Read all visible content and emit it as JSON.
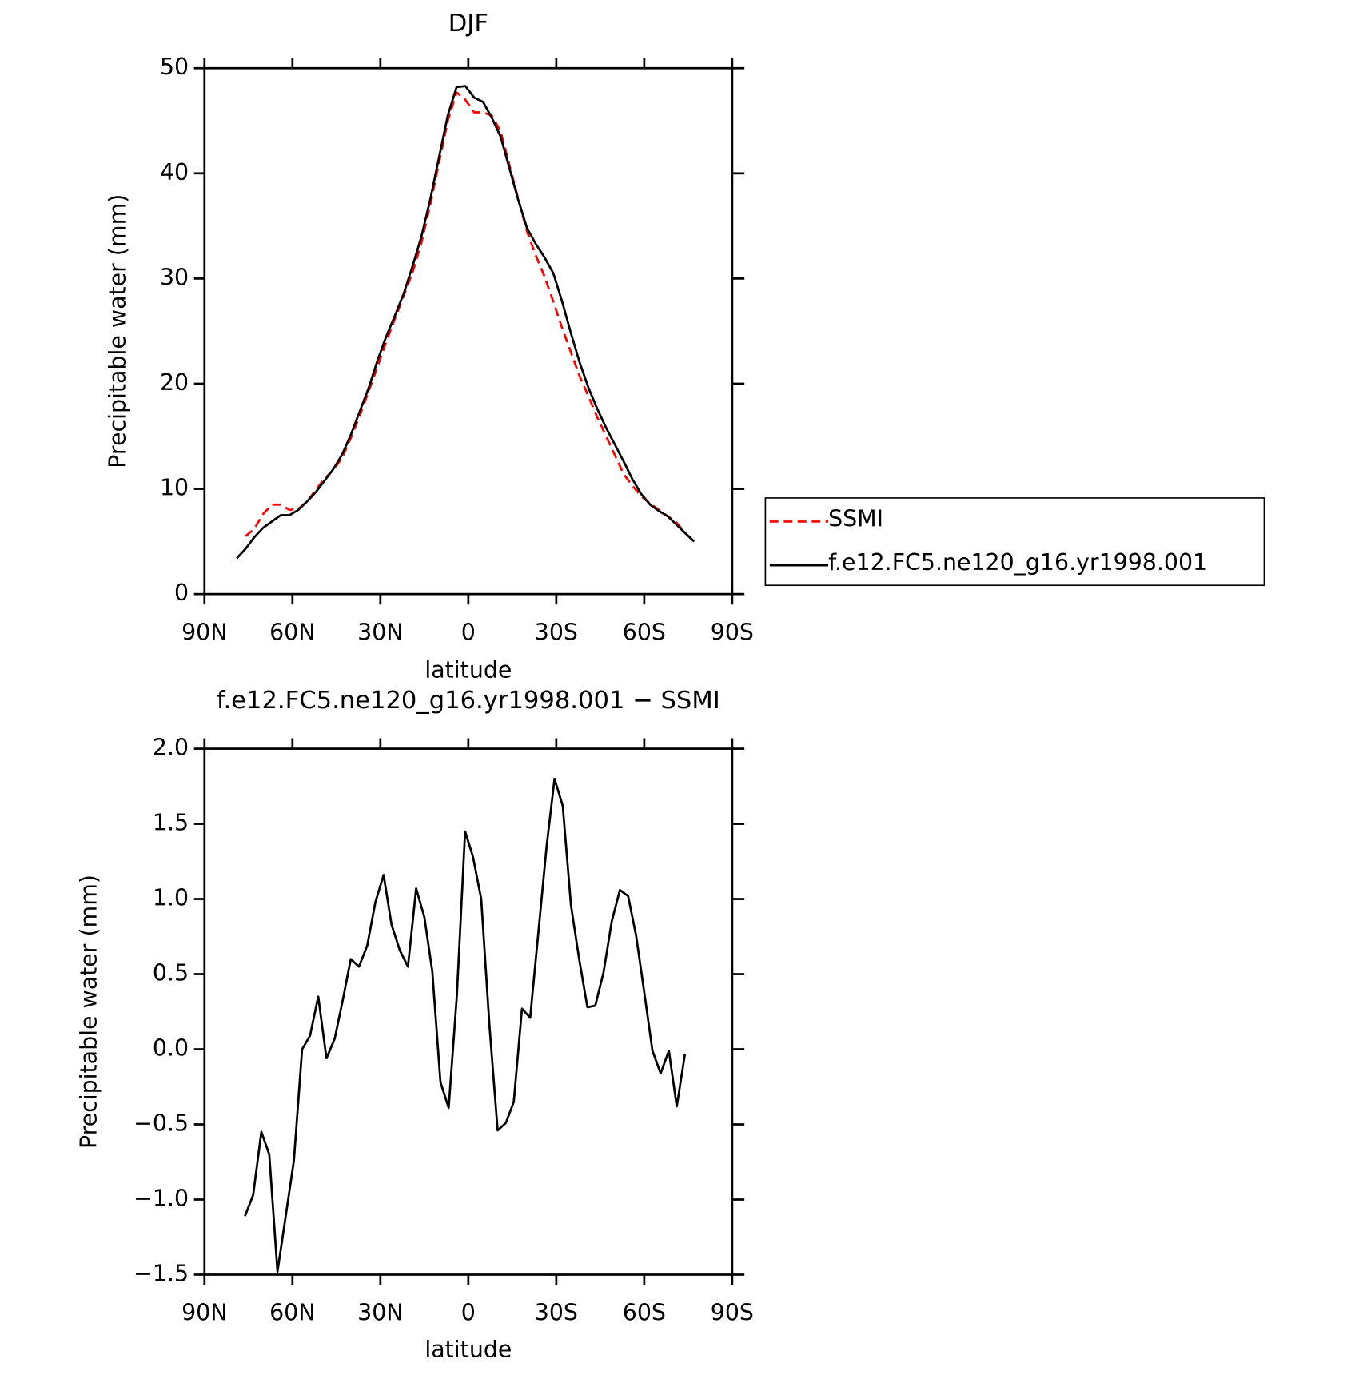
{
  "chart_data": [
    {
      "type": "line",
      "title": "DJF",
      "x_label": "latitude",
      "y_label": "Precipitable water (mm)",
      "x": [
        79,
        76,
        73,
        70,
        67,
        64,
        61,
        58,
        55,
        52,
        49,
        46,
        43,
        40,
        37,
        34,
        31,
        28,
        25,
        22,
        19,
        16,
        13,
        10,
        7,
        4,
        1,
        -2,
        -5,
        -8,
        -11,
        -14,
        -17,
        -20,
        -23,
        -26,
        -29,
        -32,
        -35,
        -38,
        -41,
        -44,
        -47,
        -50,
        -53,
        -56,
        -59,
        -62,
        -65,
        -68,
        -71,
        -74,
        -77
      ],
      "series": [
        {
          "name": "SSMI",
          "color": "#ff0000",
          "dashed": true,
          "values": [
            null,
            5.5,
            6.2,
            7.6,
            8.5,
            8.5,
            8.0,
            8.1,
            8.8,
            9.9,
            11.0,
            11.8,
            13.0,
            14.9,
            17.0,
            19.3,
            21.6,
            24.0,
            26.2,
            28.4,
            30.6,
            33.4,
            37.0,
            41.0,
            45.0,
            47.7,
            47.0,
            45.8,
            45.8,
            45.5,
            44.0,
            40.8,
            37.6,
            34.5,
            32.2,
            30.2,
            27.8,
            25.3,
            23.0,
            20.7,
            18.8,
            16.8,
            15.0,
            13.2,
            11.4,
            10.3,
            9.3,
            8.6,
            8.0,
            7.4,
            6.8,
            5.8,
            5.0
          ]
        },
        {
          "name": "f.e12.FC5.ne120_g16.yr1998.001",
          "color": "#000000",
          "dashed": false,
          "values": [
            3.4,
            4.3,
            5.4,
            6.3,
            6.9,
            7.5,
            7.5,
            8.0,
            8.8,
            9.7,
            10.8,
            11.9,
            13.3,
            15.2,
            17.4,
            19.6,
            22.2,
            24.5,
            26.5,
            28.6,
            31.2,
            34.0,
            37.5,
            41.5,
            45.5,
            48.2,
            48.3,
            47.2,
            46.8,
            45.3,
            43.5,
            40.5,
            37.5,
            34.8,
            33.3,
            32.0,
            30.5,
            27.8,
            24.8,
            22.0,
            19.6,
            17.6,
            15.8,
            14.2,
            12.6,
            10.9,
            9.5,
            8.5,
            7.9,
            7.4,
            6.6,
            5.8,
            5.0
          ]
        }
      ],
      "xlim": [
        90,
        -90
      ],
      "xticks": [
        {
          "value": 90,
          "label": "90N"
        },
        {
          "value": 60,
          "label": "60N"
        },
        {
          "value": 30,
          "label": "30N"
        },
        0,
        {
          "value": -30,
          "label": "30S"
        },
        {
          "value": -60,
          "label": "60S"
        },
        {
          "value": -90,
          "label": "90S"
        }
      ],
      "ylim": [
        0,
        50
      ],
      "yticks": [
        0,
        10,
        20,
        30,
        40,
        50
      ],
      "legend": "right"
    },
    {
      "type": "line",
      "title": "f.e12.FC5.ne120_g16.yr1998.001 − SSMI",
      "x_label": "latitude",
      "y_label": "Precipitable water (mm)",
      "x": [
        76.2,
        73.4,
        70.6,
        67.9,
        65.1,
        62.3,
        59.5,
        56.7,
        54.0,
        51.2,
        48.4,
        45.6,
        42.8,
        40.1,
        37.3,
        34.5,
        31.7,
        28.9,
        26.2,
        23.4,
        20.6,
        17.8,
        15.0,
        12.3,
        9.5,
        6.7,
        3.9,
        1.1,
        -1.6,
        -4.4,
        -7.2,
        -10.0,
        -12.8,
        -15.5,
        -18.3,
        -21.1,
        -23.9,
        -26.7,
        -29.4,
        -32.2,
        -35.0,
        -37.8,
        -40.6,
        -43.3,
        -46.1,
        -48.9,
        -51.7,
        -54.5,
        -57.2,
        -60.0,
        -62.8,
        -65.6,
        -68.4,
        -71.1,
        -73.9
      ],
      "series": [
        {
          "name": null,
          "color": "#000000",
          "dashed": false,
          "values": [
            -1.11,
            -0.97,
            -0.55,
            -0.7,
            -1.48,
            -1.11,
            -0.74,
            0.0,
            0.09,
            0.35,
            -0.06,
            0.07,
            0.33,
            0.6,
            0.55,
            0.69,
            0.98,
            1.16,
            0.83,
            0.66,
            0.55,
            1.07,
            0.88,
            0.52,
            -0.22,
            -0.39,
            0.36,
            1.45,
            1.28,
            1.0,
            0.16,
            -0.54,
            -0.49,
            -0.35,
            0.27,
            0.21,
            0.78,
            1.35,
            1.8,
            1.62,
            0.96,
            0.6,
            0.28,
            0.29,
            0.51,
            0.85,
            1.06,
            1.02,
            0.76,
            0.38,
            -0.01,
            -0.16,
            -0.01,
            -0.38,
            -0.03
          ]
        }
      ],
      "xlim": [
        90,
        -90
      ],
      "xticks": [
        {
          "value": 90,
          "label": "90N"
        },
        {
          "value": 60,
          "label": "60N"
        },
        {
          "value": 30,
          "label": "30N"
        },
        0,
        {
          "value": -30,
          "label": "30S"
        },
        {
          "value": -60,
          "label": "60S"
        },
        {
          "value": -90,
          "label": "90S"
        }
      ],
      "ylim": [
        -1.5,
        2.0
      ],
      "yticks": [
        {
          "value": -1.5,
          "label": "−1.5"
        },
        {
          "value": -1.0,
          "label": "−1.0"
        },
        {
          "value": -0.5,
          "label": "−0.5"
        },
        {
          "value": 0,
          "label": "0.0"
        },
        0.5,
        {
          "value": 1.0,
          "label": "1.0"
        },
        1.5,
        {
          "value": 2.0,
          "label": "2.0"
        }
      ]
    }
  ]
}
